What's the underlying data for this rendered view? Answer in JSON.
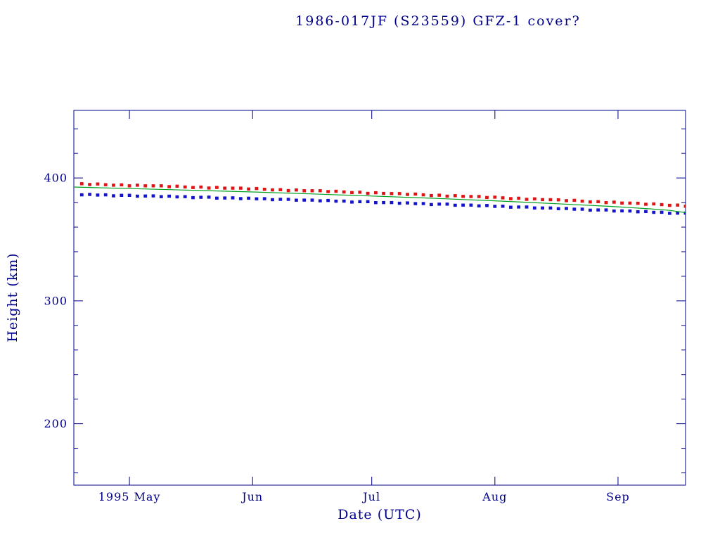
{
  "colors": {
    "background": "#ffffff",
    "axis": "#00008b",
    "red_series": "#e01414",
    "blue_series": "#1414cc",
    "green_line": "#00a020"
  },
  "chart_data": {
    "type": "scatter",
    "title": "1986-017JF (S23559) GFZ-1 cover?",
    "xlabel": "Date (UTC)",
    "ylabel": "Height (km)",
    "x_axis_note": "x measured in days; left edge of frame = day 0 (mid-April 1995)",
    "xlim": [
      0,
      154
    ],
    "ylim": [
      150,
      455
    ],
    "grid": false,
    "legend": "none",
    "y_major_ticks": [
      200,
      300,
      400
    ],
    "y_minor_step": 20,
    "x_ticks": [
      {
        "day": 14,
        "label": "1995 May"
      },
      {
        "day": 45,
        "label": "Jun"
      },
      {
        "day": 75,
        "label": "Jul"
      },
      {
        "day": 106,
        "label": "Aug"
      },
      {
        "day": 137,
        "label": "Sep"
      }
    ],
    "series": [
      {
        "name": "red-squares-upper-height",
        "type": "scatter",
        "marker": "square",
        "color": "#e01414",
        "day_start": 2,
        "day_step": 2,
        "heights": [
          395.3,
          394.7,
          395.1,
          394.5,
          394.1,
          394.4,
          393.6,
          394.1,
          393.6,
          393.6,
          393.6,
          392.9,
          393.3,
          392.7,
          392.2,
          392.6,
          391.8,
          392.3,
          391.7,
          391.7,
          391.7,
          391.0,
          391.4,
          390.8,
          390.3,
          390.5,
          389.7,
          390.2,
          389.6,
          389.6,
          389.6,
          388.9,
          389.2,
          388.6,
          388.1,
          388.4,
          387.5,
          388.0,
          387.4,
          387.3,
          387.3,
          386.6,
          386.9,
          386.3,
          385.7,
          386.0,
          385.2,
          385.6,
          385.0,
          384.9,
          384.9,
          384.1,
          384.4,
          383.8,
          383.2,
          383.5,
          382.6,
          383.0,
          382.4,
          382.3,
          382.2,
          381.5,
          381.8,
          381.1,
          380.5,
          380.7,
          379.9,
          380.3,
          379.6,
          379.5,
          379.4,
          378.6,
          378.9,
          378.3,
          377.7,
          377.9,
          377.0
        ]
      },
      {
        "name": "blue-squares-lower-height",
        "type": "scatter",
        "marker": "square",
        "color": "#1414cc",
        "day_start": 2,
        "day_step": 2,
        "heights": [
          386.3,
          386.6,
          386.1,
          386.3,
          385.5,
          385.9,
          385.9,
          385.2,
          385.3,
          385.4,
          384.8,
          385.2,
          384.6,
          384.8,
          384.0,
          384.3,
          384.4,
          383.6,
          383.7,
          383.8,
          383.2,
          383.5,
          383.0,
          383.1,
          382.3,
          382.6,
          382.6,
          381.9,
          382.0,
          382.0,
          381.4,
          381.7,
          381.1,
          381.2,
          380.4,
          380.7,
          380.7,
          379.9,
          380.0,
          380.0,
          379.4,
          379.7,
          379.1,
          379.2,
          378.4,
          378.7,
          378.7,
          377.8,
          377.9,
          377.9,
          377.3,
          377.6,
          376.9,
          377.0,
          376.2,
          376.4,
          376.4,
          375.6,
          375.6,
          375.6,
          375.0,
          375.2,
          374.6,
          374.6,
          373.8,
          374.0,
          374.0,
          373.1,
          373.2,
          373.1,
          372.5,
          372.7,
          372.0,
          372.1,
          371.2,
          371.4,
          371.4
        ]
      },
      {
        "name": "green-trend-line",
        "type": "line",
        "color": "#00a020",
        "points": [
          [
            0,
            392.6
          ],
          [
            15,
            391.3
          ],
          [
            30,
            390.0
          ],
          [
            45,
            388.6
          ],
          [
            60,
            387.0
          ],
          [
            75,
            385.3
          ],
          [
            90,
            383.5
          ],
          [
            105,
            381.5
          ],
          [
            120,
            379.3
          ],
          [
            135,
            376.9
          ],
          [
            145,
            374.9
          ],
          [
            150,
            373.6
          ],
          [
            154,
            371.8
          ]
        ]
      }
    ]
  }
}
